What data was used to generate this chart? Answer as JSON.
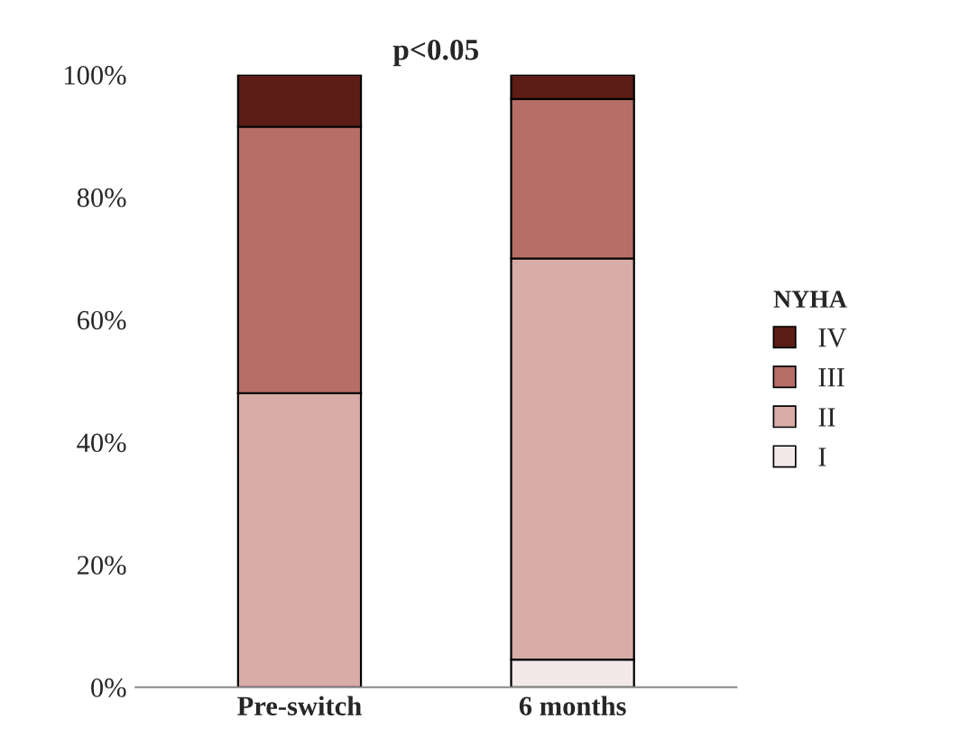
{
  "chart_data": {
    "type": "bar",
    "title": "p<0.05",
    "stacked": true,
    "categories": [
      "Pre-switch",
      "6 months"
    ],
    "series": [
      {
        "name": "I",
        "color": "#f2e9e8",
        "values": [
          0,
          4.5
        ]
      },
      {
        "name": "II",
        "color": "#d8aca7",
        "values": [
          48,
          65.5
        ]
      },
      {
        "name": "III",
        "color": "#b66e66",
        "values": [
          43.5,
          26
        ]
      },
      {
        "name": "IV",
        "color": "#5b1d15",
        "values": [
          8.5,
          4
        ]
      }
    ],
    "ylim": [
      0,
      100
    ],
    "yticks": [
      {
        "value": 0,
        "label": "0%"
      },
      {
        "value": 20,
        "label": "20%"
      },
      {
        "value": 40,
        "label": "40%"
      },
      {
        "value": 60,
        "label": "60%"
      },
      {
        "value": 80,
        "label": "80%"
      },
      {
        "value": 100,
        "label": "100%"
      }
    ],
    "legend_title": "NYHA",
    "legend": "right",
    "grid": false
  }
}
